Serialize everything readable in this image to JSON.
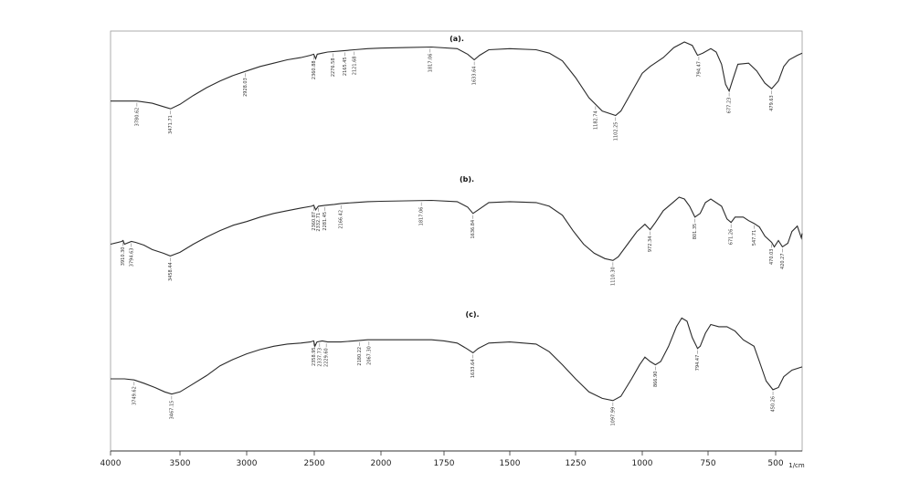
{
  "chart_data": {
    "type": "line",
    "xlabel": "1/cm",
    "xlim": [
      4000,
      400
    ],
    "x_ticks": [
      4000,
      3500,
      3000,
      2500,
      2000,
      1750,
      1500,
      1250,
      1000,
      750,
      500
    ],
    "x_tick_labels": [
      "4000",
      "3500",
      "3000",
      "2500",
      "2000",
      "1750",
      "1500",
      "1250",
      "1000",
      "750",
      "500"
    ],
    "grid": false,
    "series": [
      {
        "name": "(a).",
        "points": [
          [
            4000,
            53
          ],
          [
            3900,
            53
          ],
          [
            3810,
            53
          ],
          [
            3700,
            55
          ],
          [
            3620,
            58
          ],
          [
            3568,
            60
          ],
          [
            3500,
            56
          ],
          [
            3400,
            48
          ],
          [
            3300,
            41
          ],
          [
            3200,
            35
          ],
          [
            3100,
            30
          ],
          [
            3000,
            26
          ],
          [
            2900,
            22
          ],
          [
            2800,
            19
          ],
          [
            2700,
            16
          ],
          [
            2600,
            14
          ],
          [
            2530,
            12
          ],
          [
            2504,
            11
          ],
          [
            2490,
            15
          ],
          [
            2478,
            11
          ],
          [
            2440,
            10
          ],
          [
            2400,
            9
          ],
          [
            2300,
            8
          ],
          [
            2200,
            7
          ],
          [
            2100,
            6
          ],
          [
            2000,
            5.5
          ],
          [
            1900,
            5
          ],
          [
            1800,
            4.5
          ],
          [
            1700,
            6
          ],
          [
            1660,
            11
          ],
          [
            1635,
            16
          ],
          [
            1615,
            12
          ],
          [
            1580,
            7
          ],
          [
            1500,
            6
          ],
          [
            1400,
            7
          ],
          [
            1350,
            10
          ],
          [
            1300,
            17
          ],
          [
            1250,
            32
          ],
          [
            1200,
            50
          ],
          [
            1150,
            62
          ],
          [
            1100,
            66
          ],
          [
            1080,
            62
          ],
          [
            1040,
            45
          ],
          [
            1000,
            28
          ],
          [
            970,
            22
          ],
          [
            920,
            14
          ],
          [
            880,
            5
          ],
          [
            840,
            0
          ],
          [
            810,
            3
          ],
          [
            790,
            12
          ],
          [
            770,
            10
          ],
          [
            740,
            6
          ],
          [
            720,
            9
          ],
          [
            700,
            20
          ],
          [
            685,
            38
          ],
          [
            672,
            44
          ],
          [
            660,
            35
          ],
          [
            640,
            20
          ],
          [
            600,
            19
          ],
          [
            570,
            26
          ],
          [
            540,
            37
          ],
          [
            515,
            42
          ],
          [
            490,
            35
          ],
          [
            470,
            22
          ],
          [
            450,
            16
          ],
          [
            420,
            12
          ],
          [
            400,
            10
          ]
        ],
        "peak_labels": [
          {
            "x": 3810,
            "text": "3780.62"
          },
          {
            "x": 3568,
            "text": "3471.71"
          },
          {
            "x": 3010,
            "text": "2928.03"
          },
          {
            "x": 2504,
            "text": "2360.88"
          },
          {
            "x": 2360,
            "text": "2276.58"
          },
          {
            "x": 2270,
            "text": "2165.45"
          },
          {
            "x": 2200,
            "text": "2121.68"
          },
          {
            "x": 1805,
            "text": "1817.06"
          },
          {
            "x": 1635,
            "text": "1633.64"
          },
          {
            "x": 1175,
            "text": "1182.74"
          },
          {
            "x": 1100,
            "text": "1102.25"
          },
          {
            "x": 785,
            "text": "794.47"
          },
          {
            "x": 672,
            "text": "677.23"
          },
          {
            "x": 515,
            "text": "479.63"
          }
        ]
      },
      {
        "name": "(b).",
        "points": [
          [
            4000,
            52
          ],
          [
            3920,
            49
          ],
          [
            3910,
            48
          ],
          [
            3900,
            52
          ],
          [
            3850,
            49
          ],
          [
            3820,
            50
          ],
          [
            3760,
            53
          ],
          [
            3700,
            58
          ],
          [
            3620,
            62
          ],
          [
            3570,
            65
          ],
          [
            3500,
            61
          ],
          [
            3400,
            52
          ],
          [
            3300,
            44
          ],
          [
            3200,
            37
          ],
          [
            3100,
            31
          ],
          [
            3000,
            27
          ],
          [
            2900,
            22
          ],
          [
            2800,
            18
          ],
          [
            2700,
            15
          ],
          [
            2600,
            12
          ],
          [
            2520,
            10
          ],
          [
            2504,
            9
          ],
          [
            2490,
            14
          ],
          [
            2470,
            10
          ],
          [
            2420,
            9
          ],
          [
            2350,
            8
          ],
          [
            2300,
            7
          ],
          [
            2200,
            6
          ],
          [
            2100,
            5
          ],
          [
            2000,
            4.5
          ],
          [
            1900,
            4
          ],
          [
            1800,
            3.5
          ],
          [
            1700,
            5
          ],
          [
            1660,
            11
          ],
          [
            1640,
            18
          ],
          [
            1620,
            14
          ],
          [
            1580,
            6
          ],
          [
            1500,
            5
          ],
          [
            1400,
            6
          ],
          [
            1350,
            10
          ],
          [
            1300,
            20
          ],
          [
            1260,
            37
          ],
          [
            1220,
            52
          ],
          [
            1180,
            62
          ],
          [
            1140,
            68
          ],
          [
            1110,
            70
          ],
          [
            1090,
            66
          ],
          [
            1050,
            50
          ],
          [
            1020,
            38
          ],
          [
            990,
            30
          ],
          [
            970,
            36
          ],
          [
            950,
            28
          ],
          [
            920,
            15
          ],
          [
            880,
            5
          ],
          [
            860,
            0
          ],
          [
            840,
            2
          ],
          [
            820,
            10
          ],
          [
            800,
            22
          ],
          [
            780,
            18
          ],
          [
            760,
            6
          ],
          [
            740,
            2
          ],
          [
            700,
            10
          ],
          [
            680,
            24
          ],
          [
            665,
            28
          ],
          [
            650,
            22
          ],
          [
            620,
            22
          ],
          [
            600,
            26
          ],
          [
            580,
            29
          ],
          [
            560,
            33
          ],
          [
            540,
            43
          ],
          [
            515,
            50
          ],
          [
            505,
            55
          ],
          [
            490,
            48
          ],
          [
            475,
            55
          ],
          [
            455,
            51
          ],
          [
            440,
            38
          ],
          [
            420,
            32
          ],
          [
            405,
            45
          ],
          [
            400,
            40
          ]
        ],
        "peak_labels": [
          {
            "x": 3910,
            "text": "3910.30"
          },
          {
            "x": 3850,
            "text": "3794.63"
          },
          {
            "x": 3570,
            "text": "3458.44"
          },
          {
            "x": 2504,
            "text": "2360.87"
          },
          {
            "x": 2470,
            "text": "2332.71"
          },
          {
            "x": 2420,
            "text": "2281.45"
          },
          {
            "x": 2300,
            "text": "2166.42"
          },
          {
            "x": 1840,
            "text": "1817.06"
          },
          {
            "x": 1640,
            "text": "1636.84"
          },
          {
            "x": 1110,
            "text": "1110.30"
          },
          {
            "x": 970,
            "text": "972.34"
          },
          {
            "x": 800,
            "text": "801.35"
          },
          {
            "x": 665,
            "text": "671.26"
          },
          {
            "x": 580,
            "text": "547.71"
          },
          {
            "x": 515,
            "text": "470.03"
          },
          {
            "x": 475,
            "text": "420.27"
          }
        ]
      },
      {
        "name": "(c).",
        "points": [
          [
            4000,
            58
          ],
          [
            3900,
            58
          ],
          [
            3830,
            59
          ],
          [
            3760,
            62
          ],
          [
            3680,
            66
          ],
          [
            3610,
            70
          ],
          [
            3560,
            72
          ],
          [
            3500,
            70
          ],
          [
            3420,
            64
          ],
          [
            3300,
            55
          ],
          [
            3200,
            46
          ],
          [
            3100,
            40
          ],
          [
            3000,
            35
          ],
          [
            2900,
            31
          ],
          [
            2800,
            28
          ],
          [
            2700,
            26
          ],
          [
            2600,
            25
          ],
          [
            2530,
            24
          ],
          [
            2504,
            23
          ],
          [
            2495,
            28
          ],
          [
            2480,
            24
          ],
          [
            2440,
            23
          ],
          [
            2400,
            24
          ],
          [
            2300,
            24
          ],
          [
            2200,
            23
          ],
          [
            2100,
            22
          ],
          [
            2000,
            22
          ],
          [
            1900,
            22
          ],
          [
            1800,
            22
          ],
          [
            1750,
            23
          ],
          [
            1700,
            25
          ],
          [
            1665,
            30
          ],
          [
            1640,
            34
          ],
          [
            1620,
            30
          ],
          [
            1580,
            25
          ],
          [
            1500,
            24
          ],
          [
            1400,
            26
          ],
          [
            1350,
            33
          ],
          [
            1300,
            45
          ],
          [
            1250,
            58
          ],
          [
            1200,
            70
          ],
          [
            1150,
            76
          ],
          [
            1110,
            78
          ],
          [
            1080,
            74
          ],
          [
            1040,
            58
          ],
          [
            1010,
            45
          ],
          [
            990,
            38
          ],
          [
            970,
            42
          ],
          [
            950,
            45
          ],
          [
            930,
            42
          ],
          [
            900,
            28
          ],
          [
            870,
            10
          ],
          [
            850,
            2
          ],
          [
            830,
            5
          ],
          [
            810,
            20
          ],
          [
            790,
            30
          ],
          [
            780,
            28
          ],
          [
            760,
            16
          ],
          [
            740,
            8
          ],
          [
            710,
            10
          ],
          [
            680,
            10
          ],
          [
            650,
            14
          ],
          [
            620,
            22
          ],
          [
            580,
            28
          ],
          [
            560,
            42
          ],
          [
            535,
            60
          ],
          [
            510,
            68
          ],
          [
            490,
            66
          ],
          [
            470,
            56
          ],
          [
            440,
            50
          ],
          [
            400,
            47
          ]
        ],
        "peak_labels": [
          {
            "x": 3830,
            "text": "3749.62"
          },
          {
            "x": 3560,
            "text": "3467.15"
          },
          {
            "x": 2504,
            "text": "2358.95"
          },
          {
            "x": 2460,
            "text": "2337.73"
          },
          {
            "x": 2410,
            "text": "2229.60"
          },
          {
            "x": 2160,
            "text": "2180.22"
          },
          {
            "x": 2090,
            "text": "2067.30"
          },
          {
            "x": 1640,
            "text": "1633.64"
          },
          {
            "x": 1110,
            "text": "1097.99"
          },
          {
            "x": 950,
            "text": "866.90"
          },
          {
            "x": 790,
            "text": "794.47"
          },
          {
            "x": 510,
            "text": "450.26"
          }
        ]
      }
    ]
  }
}
